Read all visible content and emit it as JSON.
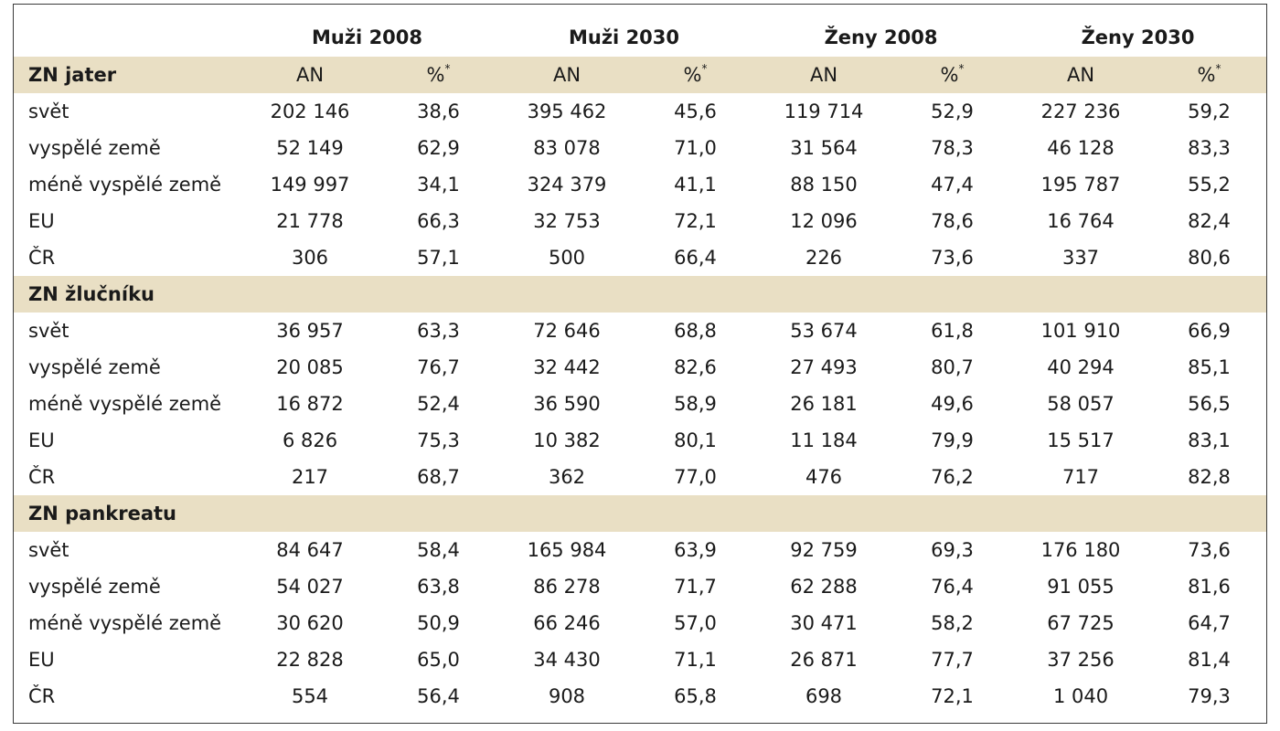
{
  "groups": [
    "Muži 2008",
    "Muži 2030",
    "Ženy 2008",
    "Ženy 2030"
  ],
  "subheaders": {
    "an": "AN",
    "pct": "%",
    "pct_mark": "*"
  },
  "sections": [
    {
      "title": "ZN jater",
      "rows": [
        {
          "label": "svět",
          "values": [
            "202 146",
            "38,6",
            "395 462",
            "45,6",
            "119 714",
            "52,9",
            "227 236",
            "59,2"
          ]
        },
        {
          "label": "vyspělé země",
          "values": [
            "52 149",
            "62,9",
            "83 078",
            "71,0",
            "31 564",
            "78,3",
            "46 128",
            "83,3"
          ]
        },
        {
          "label": "méně vyspělé země",
          "values": [
            "149 997",
            "34,1",
            "324 379",
            "41,1",
            "88 150",
            "47,4",
            "195 787",
            "55,2"
          ]
        },
        {
          "label": "EU",
          "values": [
            "21 778",
            "66,3",
            "32 753",
            "72,1",
            "12 096",
            "78,6",
            "16 764",
            "82,4"
          ]
        },
        {
          "label": "ČR",
          "values": [
            "306",
            "57,1",
            "500",
            "66,4",
            "226",
            "73,6",
            "337",
            "80,6"
          ]
        }
      ]
    },
    {
      "title": "ZN žlučníku",
      "rows": [
        {
          "label": "svět",
          "values": [
            "36 957",
            "63,3",
            "72 646",
            "68,8",
            "53 674",
            "61,8",
            "101 910",
            "66,9"
          ]
        },
        {
          "label": "vyspělé země",
          "values": [
            "20 085",
            "76,7",
            "32 442",
            "82,6",
            "27 493",
            "80,7",
            "40 294",
            "85,1"
          ]
        },
        {
          "label": "méně vyspělé země",
          "values": [
            "16 872",
            "52,4",
            "36 590",
            "58,9",
            "26 181",
            "49,6",
            "58 057",
            "56,5"
          ]
        },
        {
          "label": "EU",
          "values": [
            "6 826",
            "75,3",
            "10 382",
            "80,1",
            "11 184",
            "79,9",
            "15 517",
            "83,1"
          ]
        },
        {
          "label": "ČR",
          "values": [
            "217",
            "68,7",
            "362",
            "77,0",
            "476",
            "76,2",
            "717",
            "82,8"
          ]
        }
      ]
    },
    {
      "title": "ZN pankreatu",
      "rows": [
        {
          "label": "svět",
          "values": [
            "84 647",
            "58,4",
            "165 984",
            "63,9",
            "92 759",
            "69,3",
            "176 180",
            "73,6"
          ]
        },
        {
          "label": "vyspělé země",
          "values": [
            "54 027",
            "63,8",
            "86 278",
            "71,7",
            "62 288",
            "76,4",
            "91 055",
            "81,6"
          ]
        },
        {
          "label": "méně vyspělé země",
          "values": [
            "30 620",
            "50,9",
            "66 246",
            "57,0",
            "30 471",
            "58,2",
            "67 725",
            "64,7"
          ]
        },
        {
          "label": "EU",
          "values": [
            "22 828",
            "65,0",
            "34 430",
            "71,1",
            "26 871",
            "77,7",
            "37 256",
            "81,4"
          ]
        },
        {
          "label": "ČR",
          "values": [
            "554",
            "56,4",
            "908",
            "65,8",
            "698",
            "72,1",
            "1 040",
            "79,3"
          ]
        }
      ]
    }
  ]
}
